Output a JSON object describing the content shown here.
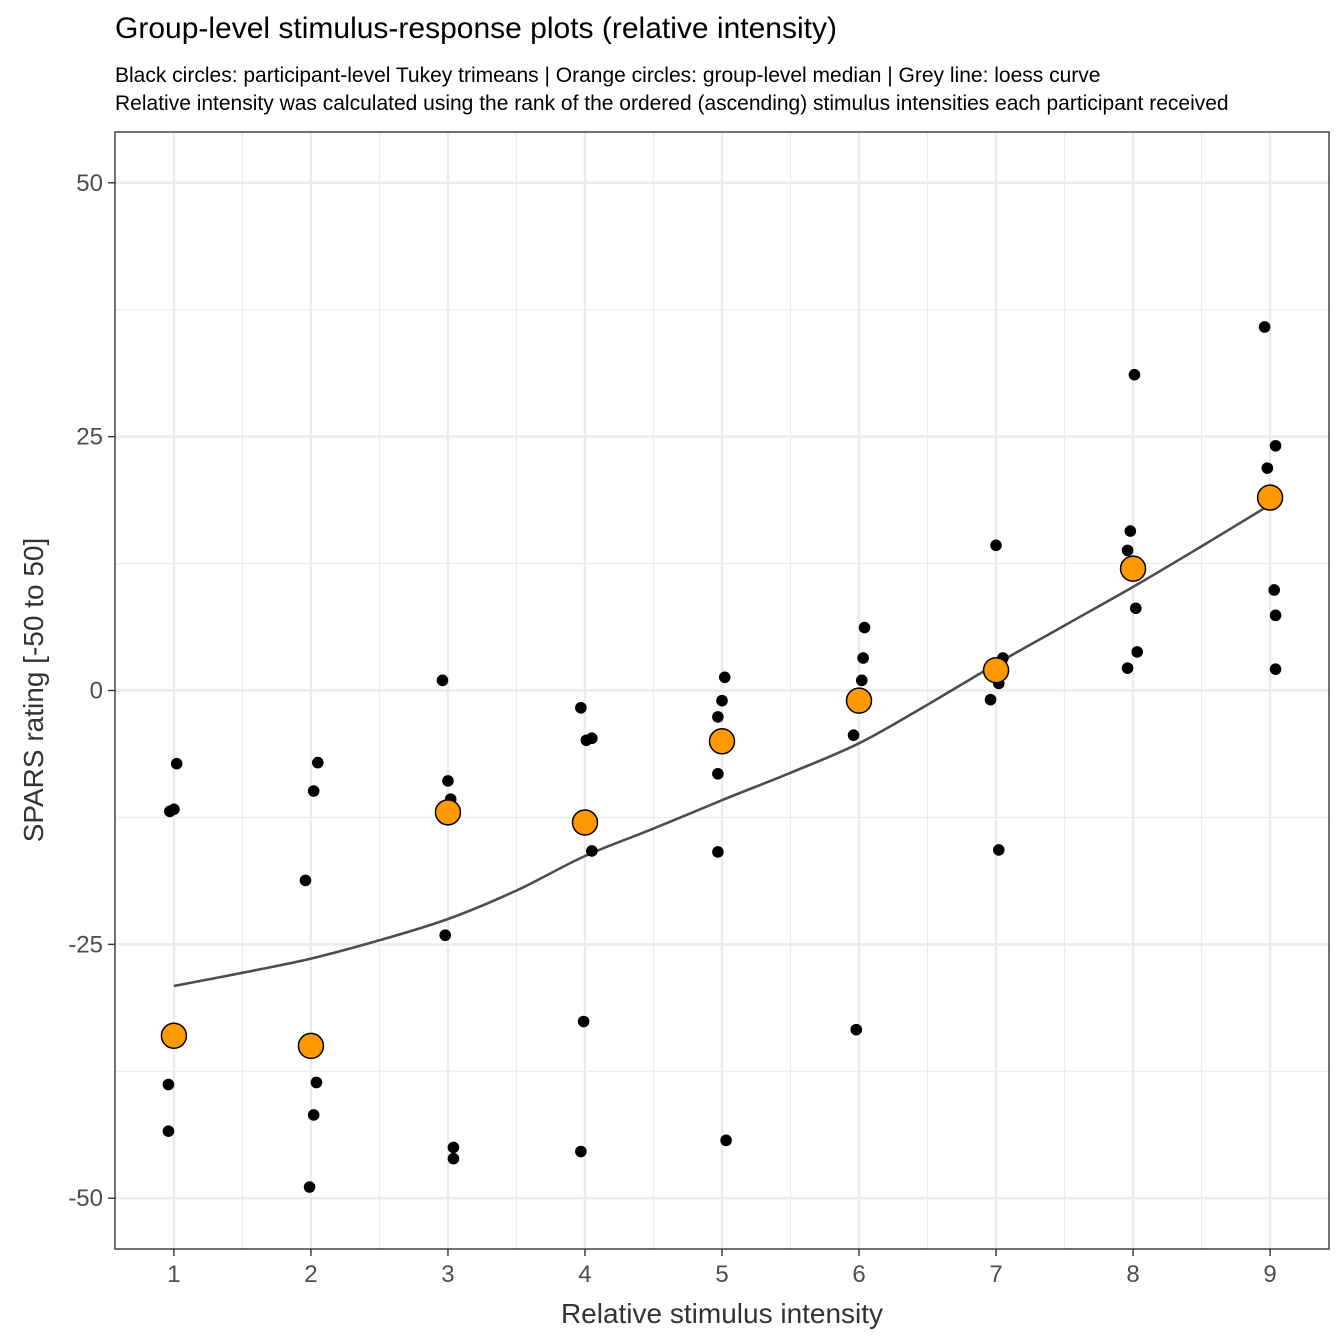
{
  "title": "Group-level stimulus-response plots (relative intensity)",
  "subtitle_line1": "Black circles: participant-level Tukey trimeans | Orange circles: group-level median | Grey line: loess curve",
  "subtitle_line2": "Relative intensity was calculated using the rank of the ordered (ascending) stimulus intensities each participant received",
  "chart_data": {
    "type": "scatter",
    "title": "Group-level stimulus-response plots (relative intensity)",
    "xlabel": "Relative stimulus intensity",
    "ylabel": "SPARS rating [-50 to 50]",
    "xlim": [
      0.57,
      9.43
    ],
    "ylim": [
      -55,
      55
    ],
    "x_ticks": [
      1,
      2,
      3,
      4,
      5,
      6,
      7,
      8,
      9
    ],
    "y_ticks": [
      -50,
      -25,
      0,
      25,
      50
    ],
    "grid": true,
    "colors": {
      "participant": "#000000",
      "median_fill": "#FF9900",
      "loess": "#4D4D4D",
      "grid": "#EBEBEB",
      "panel_border": "#333333"
    },
    "participant_points": [
      {
        "x": 1.02,
        "y": -7.2
      },
      {
        "x": 0.97,
        "y": -11.9
      },
      {
        "x": 1.0,
        "y": -11.7
      },
      {
        "x": 0.96,
        "y": -38.8
      },
      {
        "x": 0.96,
        "y": -43.4
      },
      {
        "x": 2.05,
        "y": -7.1
      },
      {
        "x": 2.02,
        "y": -9.9
      },
      {
        "x": 1.96,
        "y": -18.7
      },
      {
        "x": 2.04,
        "y": -38.6
      },
      {
        "x": 2.02,
        "y": -41.8
      },
      {
        "x": 1.99,
        "y": -48.9
      },
      {
        "x": 2.96,
        "y": 1.0
      },
      {
        "x": 3.0,
        "y": -8.9
      },
      {
        "x": 3.02,
        "y": -10.7
      },
      {
        "x": 2.98,
        "y": -24.1
      },
      {
        "x": 3.04,
        "y": -45.0
      },
      {
        "x": 3.04,
        "y": -46.1
      },
      {
        "x": 3.97,
        "y": -1.7
      },
      {
        "x": 4.01,
        "y": -4.9
      },
      {
        "x": 4.05,
        "y": -4.7
      },
      {
        "x": 4.05,
        "y": -15.8
      },
      {
        "x": 3.99,
        "y": -32.6
      },
      {
        "x": 3.97,
        "y": -45.4
      },
      {
        "x": 5.02,
        "y": 1.3
      },
      {
        "x": 5.0,
        "y": -1.0
      },
      {
        "x": 4.97,
        "y": -2.6
      },
      {
        "x": 4.97,
        "y": -8.2
      },
      {
        "x": 4.97,
        "y": -15.9
      },
      {
        "x": 5.03,
        "y": -44.3
      },
      {
        "x": 6.04,
        "y": 6.2
      },
      {
        "x": 6.03,
        "y": 3.2
      },
      {
        "x": 6.02,
        "y": 1.0
      },
      {
        "x": 5.96,
        "y": -4.4
      },
      {
        "x": 5.98,
        "y": -33.4
      },
      {
        "x": 7.0,
        "y": 14.3
      },
      {
        "x": 7.05,
        "y": 3.2
      },
      {
        "x": 7.02,
        "y": 0.7
      },
      {
        "x": 6.96,
        "y": -0.9
      },
      {
        "x": 7.02,
        "y": -15.7
      },
      {
        "x": 8.01,
        "y": 31.1
      },
      {
        "x": 7.98,
        "y": 15.7
      },
      {
        "x": 7.96,
        "y": 13.8
      },
      {
        "x": 8.02,
        "y": 8.1
      },
      {
        "x": 8.03,
        "y": 3.8
      },
      {
        "x": 7.96,
        "y": 2.2
      },
      {
        "x": 8.96,
        "y": 35.8
      },
      {
        "x": 9.04,
        "y": 24.1
      },
      {
        "x": 8.98,
        "y": 21.9
      },
      {
        "x": 9.03,
        "y": 9.9
      },
      {
        "x": 9.04,
        "y": 7.4
      },
      {
        "x": 9.04,
        "y": 2.1
      }
    ],
    "group_medians": [
      {
        "x": 1,
        "y": -34.0
      },
      {
        "x": 2,
        "y": -35.0
      },
      {
        "x": 3,
        "y": -12.0
      },
      {
        "x": 4,
        "y": -13.0
      },
      {
        "x": 5,
        "y": -5.0
      },
      {
        "x": 6,
        "y": -1.0
      },
      {
        "x": 7,
        "y": 2.0
      },
      {
        "x": 8,
        "y": 12.0
      },
      {
        "x": 9,
        "y": 19.0
      }
    ],
    "loess_curve": [
      {
        "x": 1,
        "y": -29.1
      },
      {
        "x": 1.5,
        "y": -27.8
      },
      {
        "x": 2,
        "y": -26.4
      },
      {
        "x": 2.5,
        "y": -24.6
      },
      {
        "x": 3,
        "y": -22.5
      },
      {
        "x": 3.5,
        "y": -19.7
      },
      {
        "x": 4,
        "y": -16.3
      },
      {
        "x": 4.5,
        "y": -13.6
      },
      {
        "x": 5,
        "y": -10.8
      },
      {
        "x": 5.5,
        "y": -8.1
      },
      {
        "x": 6,
        "y": -5.2
      },
      {
        "x": 6.5,
        "y": -1.4
      },
      {
        "x": 7,
        "y": 2.6
      },
      {
        "x": 7.5,
        "y": 6.4
      },
      {
        "x": 8,
        "y": 10.2
      },
      {
        "x": 8.5,
        "y": 14.2
      },
      {
        "x": 9,
        "y": 18.3
      }
    ]
  }
}
